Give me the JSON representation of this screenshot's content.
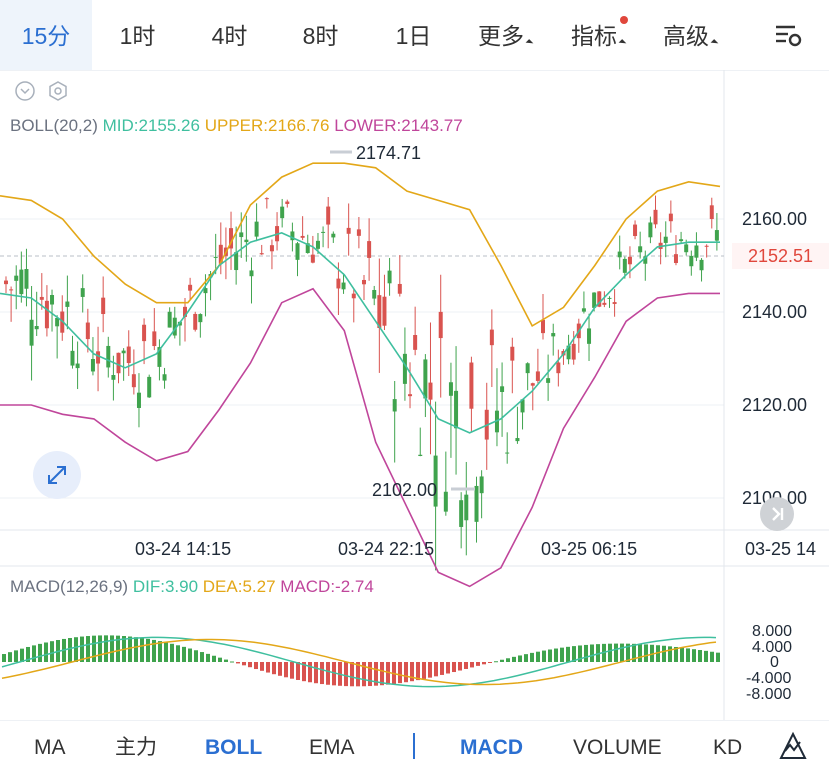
{
  "timeframes": [
    {
      "label": "15分",
      "active": true
    },
    {
      "label": "1时",
      "active": false
    },
    {
      "label": "4时",
      "active": false
    },
    {
      "label": "8时",
      "active": false
    },
    {
      "label": "1日",
      "active": false
    },
    {
      "label": "更多",
      "active": false
    },
    {
      "label": "指标",
      "active": false
    },
    {
      "label": "高级",
      "active": false
    }
  ],
  "boll": {
    "name": "BOLL(20,2)",
    "mid": "MID:2155.26",
    "upper": "UPPER:2166.76",
    "lower": "LOWER:2143.77"
  },
  "price_axis": [
    "2160.00",
    "2140.00",
    "2120.00",
    "2100.00"
  ],
  "last_price": "2152.51",
  "high_marker": "2174.71",
  "low_marker": "2102.00",
  "time_axis": [
    "03-24 14:15",
    "03-24 22:15",
    "03-25 06:15",
    "03-25 14"
  ],
  "macd": {
    "name": "MACD(12,26,9)",
    "dif": "DIF:3.90",
    "dea": "DEA:5.27",
    "macd": "MACD:-2.74",
    "axis": [
      "8.000",
      "4.000",
      "0",
      "-4.000",
      "-8.000"
    ]
  },
  "bottom_tabs": [
    {
      "label": "MA",
      "on": false
    },
    {
      "label": "主力",
      "on": false
    },
    {
      "label": "BOLL",
      "on": true
    },
    {
      "label": "EMA",
      "on": false
    },
    {
      "label": "MACD",
      "on": true
    },
    {
      "label": "VOLUME",
      "on": false
    },
    {
      "label": "KD",
      "on": false
    }
  ],
  "colors": {
    "up": "#3fa34d",
    "down": "#d9534f",
    "mid": "#3fbf9f",
    "upper": "#e3a718",
    "lower": "#c0469b",
    "accent": "#2b6fd1"
  },
  "chart_data": {
    "type": "line",
    "boll_upper": [
      2165,
      2164,
      2160,
      2152,
      2146,
      2142,
      2142,
      2150,
      2163,
      2169,
      2172,
      2172,
      2171,
      2166,
      2164,
      2162,
      2150,
      2137,
      2141,
      2150,
      2160,
      2166,
      2168,
      2167
    ],
    "boll_mid": [
      2144,
      2143,
      2138,
      2131,
      2128,
      2131,
      2140,
      2150,
      2155,
      2157,
      2154,
      2148,
      2138,
      2128,
      2117,
      2114,
      2117,
      2123,
      2131,
      2141,
      2148,
      2154,
      2155,
      2155
    ],
    "boll_lower": [
      2120,
      2120,
      2118,
      2117,
      2112,
      2108,
      2110,
      2119,
      2129,
      2142,
      2145,
      2136,
      2112,
      2098,
      2084,
      2081,
      2085,
      2098,
      2115,
      2126,
      2138,
      2143,
      2144,
      2144
    ],
    "price_ylim": [
      2095,
      2185
    ],
    "macd_ylim": [
      -10,
      10
    ]
  }
}
